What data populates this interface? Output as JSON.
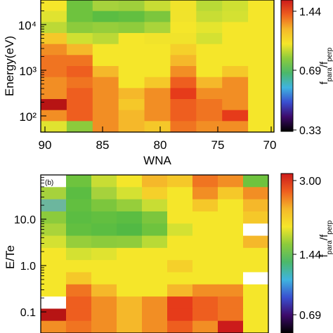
{
  "chart_data": [
    {
      "type": "heatmap",
      "panel_label": "",
      "xlabel": "WNA",
      "ylabel": "Energy(eV)",
      "x_ticks": [
        "90",
        "85",
        "80",
        "75",
        "70"
      ],
      "x_range": [
        90,
        70
      ],
      "y_ticks": [
        "10²",
        "10³",
        "10⁴"
      ],
      "y_scale": "log",
      "colorbar_label": "f_para/f_perp",
      "colorbar_ticks": [
        "0.33",
        "0.69",
        "1.44"
      ],
      "grid": [
        [
          "#f5e62a",
          "#6ec33e",
          "#a6d23c",
          "#9fd03b",
          "#c8dd34",
          "#f1e32b",
          "#b9da36",
          "#cfe032",
          "#f5e62a"
        ],
        [
          "#e0e330",
          "#6ec33e",
          "#5bbd42",
          "#62bf40",
          "#7cc63d",
          "#f1e32b",
          "#c8dd34",
          "#d4e132",
          "#f5e62a"
        ],
        [
          "#bcd936",
          "#8ccb3c",
          "#96ce3b",
          "#8fcc3c",
          "#aad43a",
          "#f5e62a",
          "#e5e52e",
          "#f5e62a",
          "#f5e62a"
        ],
        [
          "#f5c829",
          "#cfe032",
          "#bcd936",
          "#f5e62a",
          "#f1e32b",
          "#f1e32b",
          "#d4e132",
          "#f5e62a",
          "#f5e62a"
        ],
        [
          "#f28e24",
          "#f5b82a",
          "#f5e62a",
          "#f5e62a",
          "#f5e62a",
          "#f5d02a",
          "#f5e62a",
          "#f5e62a",
          "#f5e62a"
        ],
        [
          "#f07421",
          "#f07421",
          "#f5e62a",
          "#f5e62a",
          "#f5e62a",
          "#f5b82a",
          "#f5e62a",
          "#f5e62a",
          "#f5e62a"
        ],
        [
          "#f07421",
          "#ee5e1f",
          "#f5b82a",
          "#f5e62a",
          "#f5e62a",
          "#f28e24",
          "#f5e62a",
          "#f5c829",
          "#f5e62a"
        ],
        [
          "#f28e24",
          "#f07421",
          "#f28e24",
          "#f5e62a",
          "#f5c829",
          "#ee5e1f",
          "#f5b82a",
          "#f28e24",
          "#f5e62a"
        ],
        [
          "#f28e24",
          "#ee5e1f",
          "#f28e24",
          "#f5b82a",
          "#f28e24",
          "#e63b1a",
          "#f28e24",
          "#f28e24",
          "#f5e62a"
        ],
        [
          "#b71414",
          "#ee5e1f",
          "#f28e24",
          "#f5c829",
          "#f28e24",
          "#ee5e1f",
          "#f07421",
          "#f28e24",
          "#f5e62a"
        ],
        [
          "#f28e24",
          "#ee5e1f",
          "#f28e24",
          "#f5b82a",
          "#f28e24",
          "#ee5e1f",
          "#f07421",
          "#e63b1a",
          "#f5e62a"
        ],
        [
          "#e0e330",
          "#8ccb3c",
          "#f28e24",
          "#f5b82a",
          "#f5c829",
          "#f07421",
          "#f28e24",
          "#f28e24",
          "#f5e62a"
        ]
      ]
    },
    {
      "type": "heatmap",
      "panel_label": "(b)",
      "xlabel": "",
      "ylabel": "E/Te",
      "y_ticks": [
        "0.1",
        "1.0",
        "10.0"
      ],
      "y_scale": "log",
      "colorbar_label": "f_para/f_perp",
      "colorbar_ticks": [
        "0.69",
        "1.44",
        "3.00"
      ],
      "grid": [
        [
          "#ffffff",
          "#6ec33e",
          "#c8dd34",
          "#f5e62a",
          "#f5b82a",
          "#f5c829",
          "#f07421",
          "#f28e24",
          "#6ec33e"
        ],
        [
          "#a6d23c",
          "#5bbd42",
          "#a6d23c",
          "#d4e132",
          "#f5d02a",
          "#f5e62a",
          "#f28e24",
          "#f5c829",
          "#f28e24"
        ],
        [
          "#6cb69e",
          "#62bf40",
          "#7cc63d",
          "#96ce3b",
          "#c8dd34",
          "#f5e62a",
          "#f5c829",
          "#f5e62a",
          "#f5b82a"
        ],
        [
          "#8ccb3c",
          "#5bbd42",
          "#62bf40",
          "#5bbd42",
          "#7cc63d",
          "#f5e62a",
          "#f5e62a",
          "#f5e62a",
          "#f5c829"
        ],
        [
          "#aad43a",
          "#62bf40",
          "#5bbd42",
          "#52b944",
          "#6ec33e",
          "#d4e132",
          "#f5e62a",
          "#f5e62a",
          "#ffffff"
        ],
        [
          "#d4e132",
          "#96ce3b",
          "#8ccb3c",
          "#8fcc3c",
          "#b9da36",
          "#f5e62a",
          "#f5e62a",
          "#f5e62a",
          "#f5b82a"
        ],
        [
          "#f5e62a",
          "#d4e132",
          "#e0e330",
          "#f5e62a",
          "#f5e62a",
          "#f5e62a",
          "#f5e62a",
          "#f5e62a",
          "#f5e62a"
        ],
        [
          "#f5e62a",
          "#f5e62a",
          "#f5e62a",
          "#f5e62a",
          "#f5e62a",
          "#f5d02a",
          "#f5e62a",
          "#f5e62a",
          "#f5e62a"
        ],
        [
          "#f5e62a",
          "#f5c829",
          "#f5e62a",
          "#f5e62a",
          "#f5e62a",
          "#f5e62a",
          "#f5e62a",
          "#f5e62a",
          "#ffffff"
        ],
        [
          "#f5e62a",
          "#f07421",
          "#f5b82a",
          "#f5e62a",
          "#f5e62a",
          "#f5b82a",
          "#f28e24",
          "#f28e24",
          "#f5e62a"
        ],
        [
          "#ffffff",
          "#ee5e1f",
          "#f28e24",
          "#f5b82a",
          "#f28e24",
          "#e63b1a",
          "#ee5e1f",
          "#f07421",
          "#f5e62a"
        ],
        [
          "#b71414",
          "#ee5e1f",
          "#f28e24",
          "#f5b82a",
          "#f28e24",
          "#e63b1a",
          "#ee5e1f",
          "#f07421",
          "#f5e62a"
        ],
        [
          "#f28e24",
          "#f07421",
          "#f28e24",
          "#f5b82a",
          "#f28e24",
          "#ee5e1f",
          "#f28e24",
          "#cc1b1b",
          "#f5e62a"
        ]
      ]
    }
  ],
  "colorbar_stops": [
    "#000000",
    "#3d0a6b",
    "#3a4fd0",
    "#3fb4e0",
    "#4bb86a",
    "#8ccb3c",
    "#f5e62a",
    "#f5b82a",
    "#ee5e1f",
    "#cc1b1b"
  ]
}
